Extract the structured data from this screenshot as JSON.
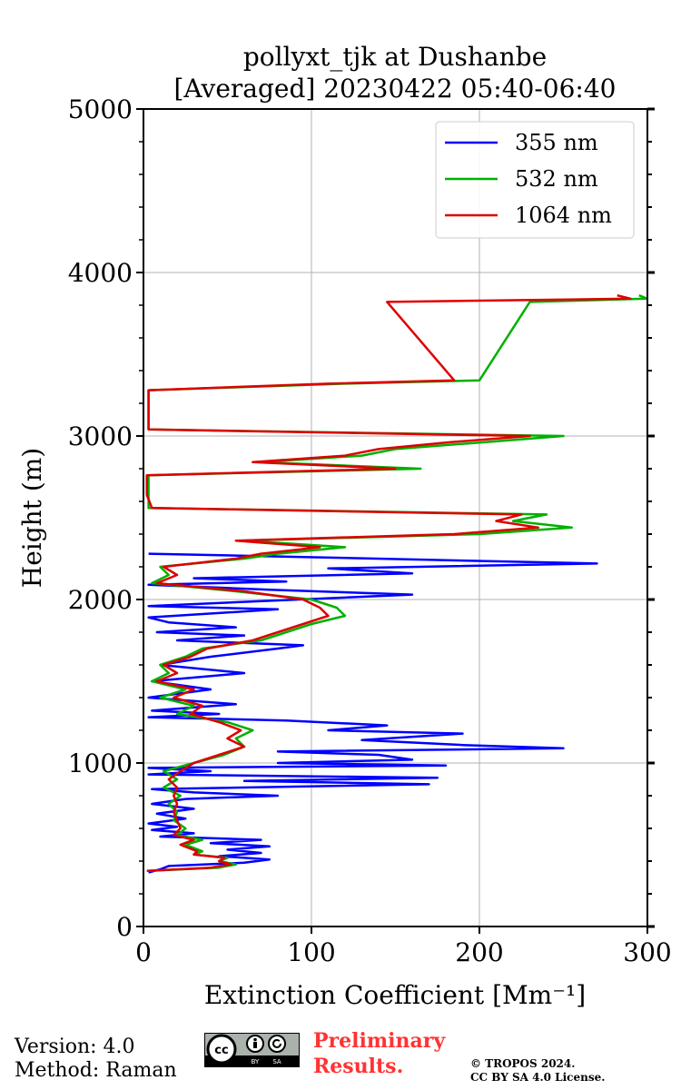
{
  "chart_data": {
    "type": "line",
    "title": "pollyxt_tjk at Dushanbe",
    "subtitle": "[Averaged] 20230422 05:40-06:40",
    "xlabel": "Extinction Coefficient [Mm⁻¹]",
    "ylabel": "Height (m)",
    "xlim": [
      0,
      300
    ],
    "ylim": [
      0,
      5000
    ],
    "xticks": [
      "0",
      "100",
      "200",
      "300"
    ],
    "yticks": [
      "0",
      "1000",
      "2000",
      "3000",
      "4000",
      "5000"
    ],
    "grid": true,
    "legend_position": "top-right",
    "series": [
      {
        "name": "355 nm",
        "color": "#0000ff",
        "points": [
          [
            3,
            330
          ],
          [
            10,
            350
          ],
          [
            15,
            370
          ],
          [
            60,
            390
          ],
          [
            75,
            410
          ],
          [
            45,
            430
          ],
          [
            70,
            450
          ],
          [
            50,
            470
          ],
          [
            75,
            490
          ],
          [
            40,
            510
          ],
          [
            70,
            530
          ],
          [
            10,
            550
          ],
          [
            30,
            570
          ],
          [
            5,
            590
          ],
          [
            20,
            610
          ],
          [
            3,
            630
          ],
          [
            25,
            660
          ],
          [
            8,
            690
          ],
          [
            30,
            720
          ],
          [
            5,
            750
          ],
          [
            25,
            780
          ],
          [
            80,
            800
          ],
          [
            30,
            820
          ],
          [
            5,
            840
          ],
          [
            170,
            870
          ],
          [
            60,
            890
          ],
          [
            175,
            910
          ],
          [
            3,
            930
          ],
          [
            40,
            950
          ],
          [
            3,
            970
          ],
          [
            180,
            985
          ],
          [
            80,
            1000
          ],
          [
            160,
            1020
          ],
          [
            140,
            1050
          ],
          [
            80,
            1070
          ],
          [
            250,
            1090
          ],
          [
            190,
            1110
          ],
          [
            130,
            1140
          ],
          [
            190,
            1180
          ],
          [
            110,
            1200
          ],
          [
            145,
            1230
          ],
          [
            85,
            1260
          ],
          [
            3,
            1280
          ],
          [
            45,
            1300
          ],
          [
            5,
            1320
          ],
          [
            55,
            1360
          ],
          [
            3,
            1400
          ],
          [
            40,
            1450
          ],
          [
            5,
            1500
          ],
          [
            60,
            1550
          ],
          [
            10,
            1600
          ],
          [
            40,
            1650
          ],
          [
            80,
            1700
          ],
          [
            95,
            1720
          ],
          [
            20,
            1750
          ],
          [
            60,
            1780
          ],
          [
            8,
            1800
          ],
          [
            55,
            1830
          ],
          [
            15,
            1860
          ],
          [
            3,
            1890
          ],
          [
            80,
            1940
          ],
          [
            3,
            1960
          ],
          [
            160,
            2030
          ],
          [
            75,
            2060
          ],
          [
            3,
            2090
          ],
          [
            85,
            2110
          ],
          [
            30,
            2130
          ],
          [
            160,
            2160
          ],
          [
            110,
            2190
          ],
          [
            270,
            2220
          ],
          [
            95,
            2260
          ],
          [
            3,
            2280
          ]
        ]
      },
      {
        "name": "532 nm",
        "color": "#00b000",
        "points": [
          [
            3,
            340
          ],
          [
            45,
            360
          ],
          [
            55,
            380
          ],
          [
            45,
            400
          ],
          [
            50,
            420
          ],
          [
            30,
            440
          ],
          [
            35,
            460
          ],
          [
            25,
            500
          ],
          [
            35,
            530
          ],
          [
            20,
            560
          ],
          [
            25,
            600
          ],
          [
            18,
            650
          ],
          [
            20,
            700
          ],
          [
            15,
            750
          ],
          [
            22,
            800
          ],
          [
            12,
            850
          ],
          [
            20,
            900
          ],
          [
            12,
            950
          ],
          [
            30,
            1000
          ],
          [
            48,
            1050
          ],
          [
            60,
            1100
          ],
          [
            55,
            1150
          ],
          [
            65,
            1200
          ],
          [
            50,
            1250
          ],
          [
            20,
            1300
          ],
          [
            30,
            1350
          ],
          [
            10,
            1400
          ],
          [
            25,
            1450
          ],
          [
            5,
            1500
          ],
          [
            15,
            1550
          ],
          [
            10,
            1600
          ],
          [
            25,
            1650
          ],
          [
            35,
            1700
          ],
          [
            70,
            1750
          ],
          [
            85,
            1800
          ],
          [
            100,
            1850
          ],
          [
            120,
            1900
          ],
          [
            115,
            1950
          ],
          [
            100,
            2000
          ],
          [
            55,
            2050
          ],
          [
            5,
            2100
          ],
          [
            15,
            2150
          ],
          [
            10,
            2200
          ],
          [
            60,
            2250
          ],
          [
            80,
            2280
          ],
          [
            120,
            2320
          ],
          [
            60,
            2360
          ],
          [
            200,
            2400
          ],
          [
            255,
            2440
          ],
          [
            220,
            2480
          ],
          [
            240,
            2520
          ],
          [
            3,
            2560
          ],
          [
            3,
            2640
          ],
          [
            3,
            2760
          ],
          [
            165,
            2800
          ],
          [
            70,
            2840
          ],
          [
            130,
            2880
          ],
          [
            150,
            2920
          ],
          [
            200,
            2960
          ],
          [
            250,
            3000
          ],
          [
            3,
            3040
          ],
          [
            3,
            3280
          ],
          [
            120,
            3320
          ],
          [
            200,
            3340
          ],
          [
            230,
            3820
          ],
          [
            300,
            3840
          ],
          [
            295,
            3860
          ]
        ]
      },
      {
        "name": "1064 nm",
        "color": "#dd0000",
        "points": [
          [
            2,
            340
          ],
          [
            40,
            360
          ],
          [
            52,
            380
          ],
          [
            45,
            400
          ],
          [
            48,
            420
          ],
          [
            30,
            440
          ],
          [
            32,
            460
          ],
          [
            22,
            500
          ],
          [
            30,
            530
          ],
          [
            18,
            560
          ],
          [
            22,
            600
          ],
          [
            20,
            650
          ],
          [
            18,
            700
          ],
          [
            20,
            750
          ],
          [
            18,
            800
          ],
          [
            20,
            850
          ],
          [
            15,
            900
          ],
          [
            22,
            950
          ],
          [
            30,
            1000
          ],
          [
            45,
            1050
          ],
          [
            60,
            1100
          ],
          [
            50,
            1150
          ],
          [
            58,
            1200
          ],
          [
            45,
            1250
          ],
          [
            28,
            1300
          ],
          [
            35,
            1350
          ],
          [
            18,
            1400
          ],
          [
            30,
            1450
          ],
          [
            8,
            1500
          ],
          [
            20,
            1550
          ],
          [
            12,
            1600
          ],
          [
            28,
            1650
          ],
          [
            38,
            1700
          ],
          [
            65,
            1750
          ],
          [
            80,
            1800
          ],
          [
            95,
            1850
          ],
          [
            110,
            1900
          ],
          [
            105,
            1950
          ],
          [
            95,
            2000
          ],
          [
            60,
            2050
          ],
          [
            8,
            2100
          ],
          [
            20,
            2150
          ],
          [
            12,
            2200
          ],
          [
            55,
            2250
          ],
          [
            70,
            2280
          ],
          [
            105,
            2320
          ],
          [
            55,
            2360
          ],
          [
            185,
            2400
          ],
          [
            235,
            2440
          ],
          [
            210,
            2480
          ],
          [
            225,
            2520
          ],
          [
            5,
            2560
          ],
          [
            2,
            2640
          ],
          [
            2,
            2760
          ],
          [
            150,
            2800
          ],
          [
            65,
            2840
          ],
          [
            120,
            2880
          ],
          [
            140,
            2920
          ],
          [
            180,
            2960
          ],
          [
            230,
            3000
          ],
          [
            3,
            3040
          ],
          [
            3,
            3280
          ],
          [
            110,
            3320
          ],
          [
            185,
            3340
          ],
          [
            145,
            3820
          ],
          [
            290,
            3840
          ],
          [
            282,
            3860
          ]
        ]
      }
    ]
  },
  "footer": {
    "version": "Version: 4.0",
    "method": "Method: Raman",
    "preliminary_line1": "Preliminary",
    "preliminary_line2": "Results.",
    "copyright_line1": "© TROPOS 2024.",
    "copyright_line2": "CC BY SA 4.0 License."
  }
}
